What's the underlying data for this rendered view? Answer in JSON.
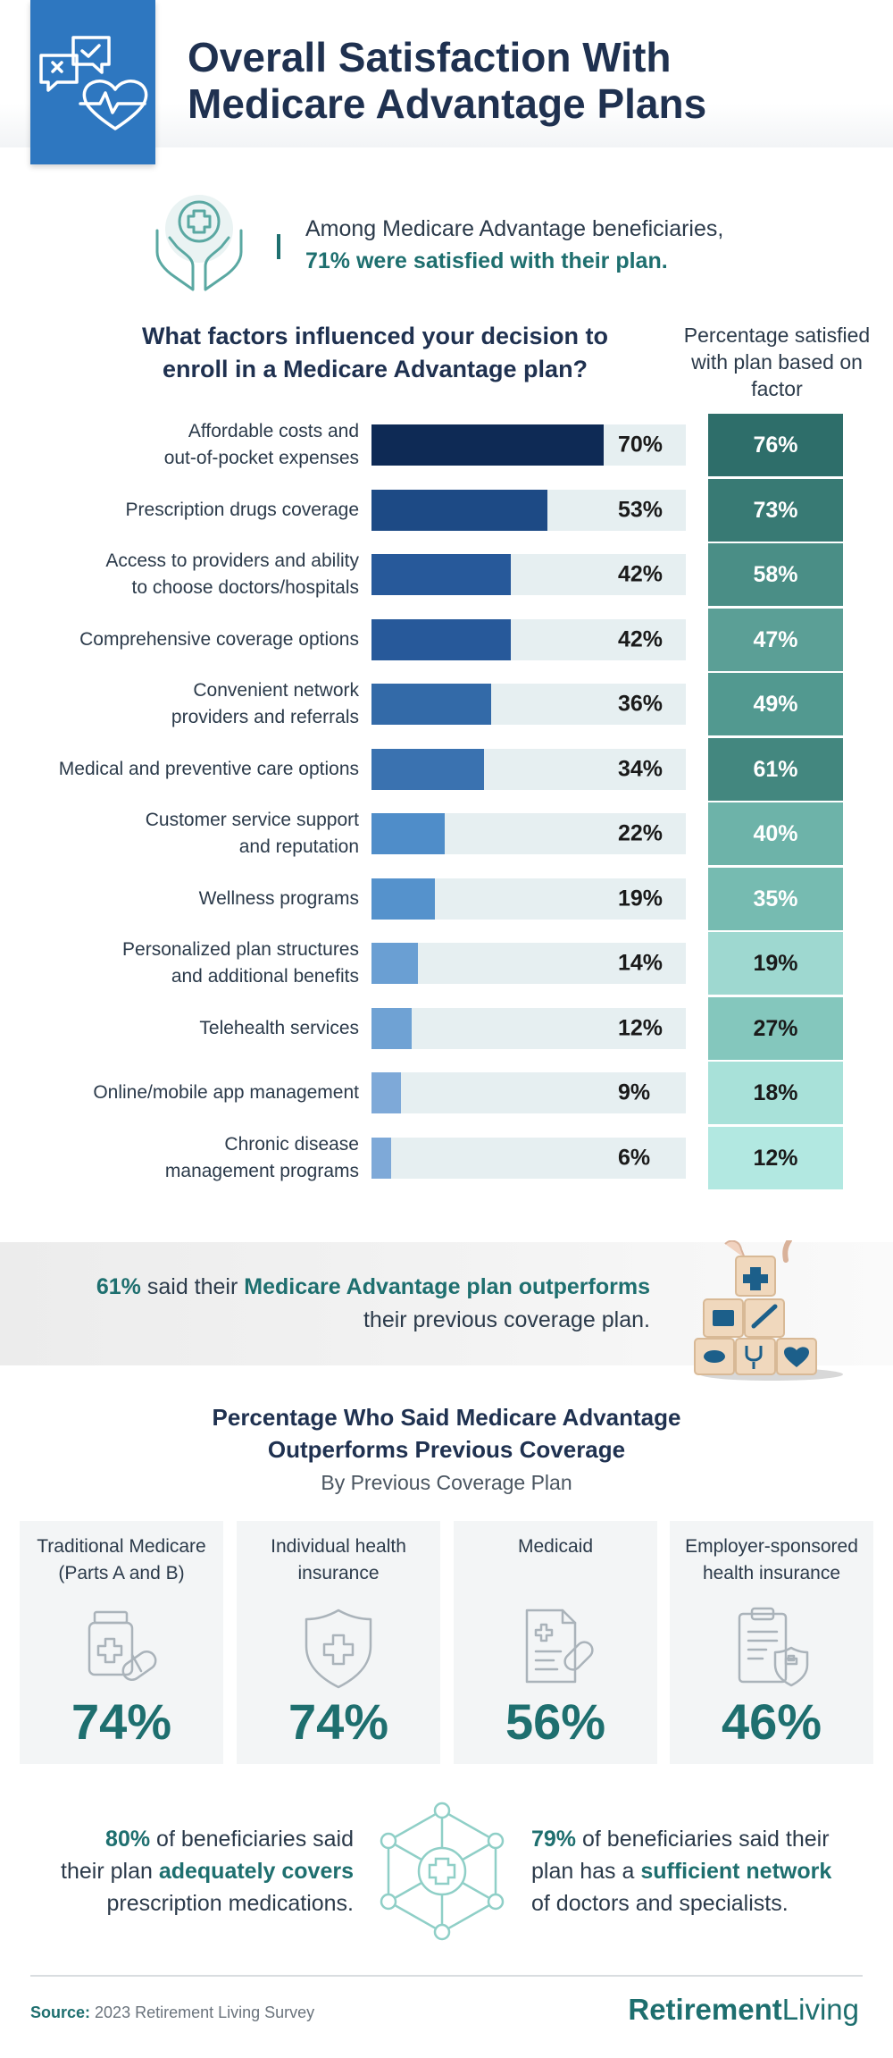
{
  "header": {
    "title_line1": "Overall Satisfaction With",
    "title_line2": "Medicare Advantage Plans"
  },
  "intro": {
    "text": "Among Medicare Advantage beneficiaries,",
    "highlight": "71% were satisfied with their plan."
  },
  "chart_data": {
    "type": "bar",
    "title": "What factors influenced your decision to enroll in a Medicare Advantage plan?",
    "right_column_title": "Percentage satisfied with plan based on factor",
    "xlim": [
      0,
      100
    ],
    "categories": [
      [
        "Affordable costs and",
        "out-of-pocket expenses"
      ],
      [
        "Prescription drugs coverage"
      ],
      [
        "Access to providers and ability",
        "to choose doctors/hospitals"
      ],
      [
        "Comprehensive coverage options"
      ],
      [
        "Convenient network",
        "providers and referrals"
      ],
      [
        "Medical and preventive care options"
      ],
      [
        "Customer service support",
        "and reputation"
      ],
      [
        "Wellness programs"
      ],
      [
        "Personalized plan structures",
        "and additional benefits"
      ],
      [
        "Telehealth services"
      ],
      [
        "Online/mobile app management"
      ],
      [
        "Chronic disease",
        "management programs"
      ]
    ],
    "values": [
      70,
      53,
      42,
      42,
      36,
      34,
      22,
      19,
      14,
      12,
      9,
      6
    ],
    "satisfied": [
      76,
      73,
      58,
      47,
      49,
      61,
      40,
      35,
      19,
      27,
      18,
      12
    ],
    "bar_colors": [
      "#0e2a55",
      "#1d4a85",
      "#27599a",
      "#27599a",
      "#336aa8",
      "#3a72b0",
      "#4f8dc9",
      "#5592cc",
      "#6a9fd3",
      "#6fa2d4",
      "#7ea9d8",
      "#7ea9d8"
    ],
    "cell_colors": [
      "#2e6e6a",
      "#387a74",
      "#4a8e86",
      "#5b9f96",
      "#529990",
      "#43877f",
      "#6db3a9",
      "#76bbb1",
      "#9ed8d0",
      "#84c7bd",
      "#a8e1d9",
      "#b2e8e1"
    ],
    "cell_text_colors": [
      "#ffffff",
      "#ffffff",
      "#ffffff",
      "#ffffff",
      "#ffffff",
      "#ffffff",
      "#ffffff",
      "#ffffff",
      "#1a1a1a",
      "#1a1a1a",
      "#1a1a1a",
      "#1a1a1a"
    ]
  },
  "banner": {
    "pct": "61%",
    "text_mid": " said their ",
    "highlight": "Medicare Advantage plan outperforms",
    "text_end": "their previous coverage plan."
  },
  "section2": {
    "title_line1": "Percentage Who Said Medicare Advantage",
    "title_line2": "Outperforms Previous Coverage",
    "subtitle": "By Previous Coverage Plan",
    "cards": [
      {
        "label1": "Traditional Medicare",
        "label2": "(Parts A and B)",
        "value": "74%",
        "icon": "medicine-bottle-pills-icon"
      },
      {
        "label1": "Individual health",
        "label2": "insurance",
        "value": "74%",
        "icon": "shield-cross-icon"
      },
      {
        "label1": "Medicaid",
        "label2": "",
        "value": "56%",
        "icon": "document-pill-icon"
      },
      {
        "label1": "Employer-sponsored",
        "label2": "health insurance",
        "value": "46%",
        "icon": "clipboard-shield-icon"
      }
    ]
  },
  "stats": {
    "left_pct": "80%",
    "left_a": " of beneficiaries said",
    "left_b": "their plan ",
    "left_hl": "adequately covers",
    "left_c": "prescription medications.",
    "right_pct": "79%",
    "right_a": " of beneficiaries said their",
    "right_b": "plan has a ",
    "right_hl": "sufficient network",
    "right_c": "of doctors and specialists."
  },
  "footer": {
    "source_label": "Source:",
    "source_text": " 2023 Retirement Living Survey",
    "brand_a": "Retirement",
    "brand_b": "Living"
  },
  "colors": {
    "accent_teal": "#1e6f6f",
    "header_blue": "#2e77c0",
    "navy": "#1f3150"
  }
}
